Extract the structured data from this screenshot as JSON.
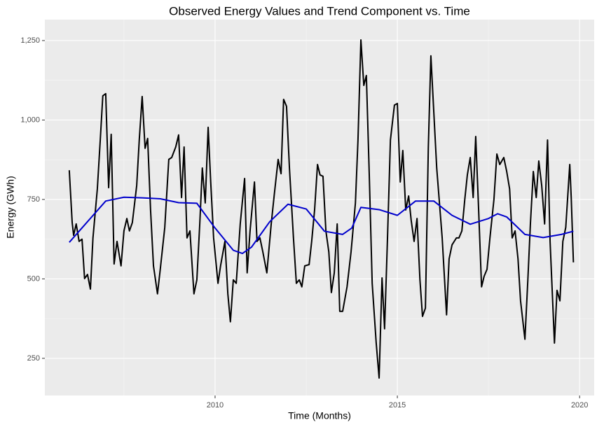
{
  "chart_data": {
    "type": "line",
    "title": "Observed Energy Values and Trend Component vs. Time",
    "x_label": "Time (Months)",
    "y_label": "Energy (GWh)",
    "xlim": [
      2005.33,
      2020.4
    ],
    "xticks": [
      2010,
      2015,
      2020
    ],
    "ylim": [
      133,
      1316
    ],
    "yticks": [
      250,
      500,
      750,
      {
        "value": 1000,
        "label": "1,000"
      },
      {
        "value": 1250,
        "label": "1,250"
      }
    ],
    "grid": true,
    "series": [
      {
        "color": "#000000",
        "x": [
          2006.0,
          2006.08,
          2006.12,
          2006.19,
          2006.27,
          2006.35,
          2006.42,
          2006.5,
          2006.58,
          2006.65,
          2006.77,
          2006.85,
          2006.92,
          2007.0,
          2007.08,
          2007.15,
          2007.23,
          2007.31,
          2007.42,
          2007.5,
          2007.58,
          2007.65,
          2007.73,
          2007.85,
          2007.92,
          2008.0,
          2008.08,
          2008.15,
          2008.23,
          2008.31,
          2008.42,
          2008.5,
          2008.62,
          2008.73,
          2008.81,
          2008.92,
          2009.0,
          2009.08,
          2009.15,
          2009.23,
          2009.31,
          2009.42,
          2009.5,
          2009.58,
          2009.65,
          2009.73,
          2009.81,
          2009.88,
          2009.96,
          2010.08,
          2010.15,
          2010.27,
          2010.35,
          2010.42,
          2010.5,
          2010.58,
          2010.69,
          2010.81,
          2010.88,
          2010.96,
          2011.08,
          2011.15,
          2011.23,
          2011.31,
          2011.42,
          2011.54,
          2011.62,
          2011.73,
          2011.81,
          2011.88,
          2011.96,
          2012.04,
          2012.15,
          2012.23,
          2012.31,
          2012.38,
          2012.46,
          2012.58,
          2012.65,
          2012.73,
          2012.81,
          2012.88,
          2012.96,
          2013.04,
          2013.12,
          2013.19,
          2013.27,
          2013.35,
          2013.42,
          2013.5,
          2013.62,
          2013.73,
          2013.85,
          2013.92,
          2014.0,
          2014.08,
          2014.15,
          2014.23,
          2014.31,
          2014.42,
          2014.5,
          2014.58,
          2014.65,
          2014.73,
          2014.81,
          2014.92,
          2015.0,
          2015.08,
          2015.15,
          2015.23,
          2015.31,
          2015.38,
          2015.46,
          2015.54,
          2015.62,
          2015.69,
          2015.77,
          2015.85,
          2015.92,
          2016.0,
          2016.08,
          2016.23,
          2016.35,
          2016.42,
          2016.5,
          2016.62,
          2016.69,
          2016.77,
          2016.85,
          2016.92,
          2017.0,
          2017.08,
          2017.15,
          2017.23,
          2017.31,
          2017.38,
          2017.46,
          2017.54,
          2017.65,
          2017.73,
          2017.81,
          2017.92,
          2018.0,
          2018.08,
          2018.15,
          2018.23,
          2018.31,
          2018.38,
          2018.5,
          2018.58,
          2018.65,
          2018.73,
          2018.81,
          2018.88,
          2018.96,
          2019.04,
          2019.12,
          2019.19,
          2019.31,
          2019.38,
          2019.46,
          2019.54,
          2019.62,
          2019.73,
          2019.77,
          2019.83
        ],
        "values": [
          842,
          677,
          637,
          673,
          618,
          625,
          501,
          514,
          468,
          629,
          783,
          937,
          1076,
          1083,
          787,
          955,
          547,
          618,
          541,
          651,
          690,
          651,
          677,
          794,
          937,
          1074,
          911,
          942,
          717,
          541,
          453,
          534,
          662,
          876,
          882,
          915,
          953,
          756,
          915,
          629,
          651,
          453,
          497,
          673,
          849,
          739,
          977,
          805,
          629,
          486,
          541,
          618,
          453,
          365,
          497,
          486,
          673,
          816,
          519,
          651,
          805,
          618,
          629,
          585,
          519,
          673,
          761,
          876,
          831,
          1065,
          1043,
          849,
          629,
          486,
          497,
          475,
          541,
          545,
          618,
          717,
          860,
          827,
          823,
          651,
          585,
          457,
          519,
          673,
          398,
          398,
          475,
          585,
          739,
          937,
          1252,
          1109,
          1140,
          827,
          486,
          298,
          188,
          503,
          343,
          629,
          937,
          1047,
          1052,
          805,
          904,
          717,
          761,
          684,
          618,
          690,
          497,
          382,
          408,
          915,
          1202,
          1025,
          849,
          629,
          387,
          563,
          607,
          629,
          629,
          651,
          750,
          827,
          882,
          756,
          948,
          717,
          475,
          508,
          530,
          629,
          750,
          893,
          860,
          882,
          838,
          783,
          629,
          651,
          563,
          431,
          310,
          497,
          673,
          838,
          756,
          871,
          794,
          673,
          937,
          618,
          298,
          464,
          431,
          618,
          662,
          860,
          756,
          552
        ]
      },
      {
        "color": "#0000cc",
        "x": [
          2006.0,
          2006.5,
          2007.0,
          2007.5,
          2008.0,
          2008.5,
          2009.0,
          2009.5,
          2010.0,
          2010.5,
          2010.75,
          2011.0,
          2011.5,
          2012.0,
          2012.5,
          2013.0,
          2013.5,
          2013.75,
          2014.0,
          2014.5,
          2015.0,
          2015.5,
          2016.0,
          2016.5,
          2017.0,
          2017.5,
          2017.75,
          2018.0,
          2018.5,
          2019.0,
          2019.5,
          2019.83
        ],
        "values": [
          615,
          680,
          745,
          757,
          755,
          752,
          740,
          738,
          660,
          590,
          580,
          600,
          680,
          735,
          720,
          650,
          640,
          660,
          725,
          718,
          700,
          745,
          745,
          700,
          672,
          690,
          705,
          695,
          640,
          630,
          640,
          650
        ]
      }
    ]
  }
}
